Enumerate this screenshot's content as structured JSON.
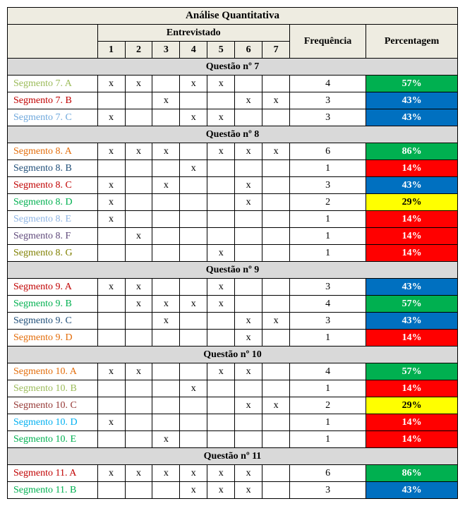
{
  "title": "Análise Quantitativa",
  "subheader": "Entrevistado",
  "freq_header": "Frequência",
  "pct_header": "Percentagem",
  "cols": [
    "1",
    "2",
    "3",
    "4",
    "5",
    "6",
    "7"
  ],
  "pct_band_colors": {
    "green": "#00b050",
    "blue": "#0070c0",
    "yellow": "#ffff00",
    "red": "#ff0000"
  },
  "yellow_text_color": "#000000",
  "questions": [
    {
      "title": "Questão nº 7",
      "rows": [
        {
          "label": "Segmento 7. A",
          "label_color": "#9bbb59",
          "marks": [
            "x",
            "x",
            "",
            "x",
            "x",
            "",
            ""
          ],
          "freq": 4,
          "pct": "57%",
          "band": "green"
        },
        {
          "label": "Segmento 7. B",
          "label_color": "#c00000",
          "marks": [
            "",
            "",
            "x",
            "",
            "",
            "x",
            "x"
          ],
          "freq": 3,
          "pct": "43%",
          "band": "blue"
        },
        {
          "label": "Segmento 7. C",
          "label_color": "#6fa8dc",
          "marks": [
            "x",
            "",
            "",
            "x",
            "x",
            "",
            ""
          ],
          "freq": 3,
          "pct": "43%",
          "band": "blue"
        }
      ]
    },
    {
      "title": "Questão nº 8",
      "rows": [
        {
          "label": "Segmento 8. A",
          "label_color": "#e36c09",
          "marks": [
            "x",
            "x",
            "x",
            "",
            "x",
            "x",
            "x"
          ],
          "freq": 6,
          "pct": "86%",
          "band": "green"
        },
        {
          "label": "Segmento 8. B",
          "label_color": "#1f4e78",
          "marks": [
            "",
            "",
            "",
            "x",
            "",
            "",
            ""
          ],
          "freq": 1,
          "pct": "14%",
          "band": "red"
        },
        {
          "label": "Segmento 8. C",
          "label_color": "#c00000",
          "marks": [
            "x",
            "",
            "x",
            "",
            "",
            "x",
            ""
          ],
          "freq": 3,
          "pct": "43%",
          "band": "blue"
        },
        {
          "label": "Segmento 8. D",
          "label_color": "#00b050",
          "marks": [
            "x",
            "",
            "",
            "",
            "",
            "x",
            ""
          ],
          "freq": 2,
          "pct": "29%",
          "band": "yellow"
        },
        {
          "label": "Segmento 8. E",
          "label_color": "#8eb4e3",
          "marks": [
            "x",
            "",
            "",
            "",
            "",
            "",
            ""
          ],
          "freq": 1,
          "pct": "14%",
          "band": "red"
        },
        {
          "label": "Segmento 8. F",
          "label_color": "#604a7b",
          "marks": [
            "",
            "x",
            "",
            "",
            "",
            "",
            ""
          ],
          "freq": 1,
          "pct": "14%",
          "band": "red"
        },
        {
          "label": "Segmento 8. G",
          "label_color": "#808000",
          "marks": [
            "",
            "",
            "",
            "",
            "x",
            "",
            ""
          ],
          "freq": 1,
          "pct": "14%",
          "band": "red"
        }
      ]
    },
    {
      "title": "Questão nº 9",
      "rows": [
        {
          "label": "Segmento 9. A",
          "label_color": "#c00000",
          "marks": [
            "x",
            "x",
            "",
            "",
            "x",
            "",
            ""
          ],
          "freq": 3,
          "pct": "43%",
          "band": "blue"
        },
        {
          "label": "Segmento 9. B",
          "label_color": "#00b050",
          "marks": [
            "",
            "x",
            "x",
            "x",
            "x",
            "",
            ""
          ],
          "freq": 4,
          "pct": "57%",
          "band": "green"
        },
        {
          "label": "Segmento 9. C",
          "label_color": "#1f4e78",
          "marks": [
            "",
            "",
            "x",
            "",
            "",
            "x",
            "x"
          ],
          "freq": 3,
          "pct": "43%",
          "band": "blue"
        },
        {
          "label": "Segmento 9. D",
          "label_color": "#e36c09",
          "marks": [
            "",
            "",
            "",
            "",
            "",
            "x",
            ""
          ],
          "freq": 1,
          "pct": "14%",
          "band": "red"
        }
      ]
    },
    {
      "title": "Questão nº 10",
      "rows": [
        {
          "label": "Segmento 10. A",
          "label_color": "#e36c09",
          "marks": [
            "x",
            "x",
            "",
            "",
            "x",
            "x",
            ""
          ],
          "freq": 4,
          "pct": "57%",
          "band": "green"
        },
        {
          "label": "Segmento 10. B",
          "label_color": "#9bbb59",
          "marks": [
            "",
            "",
            "",
            "x",
            "",
            "",
            ""
          ],
          "freq": 1,
          "pct": "14%",
          "band": "red"
        },
        {
          "label": "Segmento 10. C",
          "label_color": "#953734",
          "marks": [
            "",
            "",
            "",
            "",
            "",
            "x",
            "x"
          ],
          "freq": 2,
          "pct": "29%",
          "band": "yellow"
        },
        {
          "label": "Segmento 10. D",
          "label_color": "#00b0f0",
          "marks": [
            "x",
            "",
            "",
            "",
            "",
            "",
            ""
          ],
          "freq": 1,
          "pct": "14%",
          "band": "red"
        },
        {
          "label": "Segmento 10. E",
          "label_color": "#00b050",
          "marks": [
            "",
            "",
            "x",
            "",
            "",
            "",
            ""
          ],
          "freq": 1,
          "pct": "14%",
          "band": "red"
        }
      ]
    },
    {
      "title": "Questão nº 11",
      "rows": [
        {
          "label": "Segmento 11. A",
          "label_color": "#c00000",
          "marks": [
            "x",
            "x",
            "x",
            "x",
            "x",
            "x",
            ""
          ],
          "freq": 6,
          "pct": "86%",
          "band": "green"
        },
        {
          "label": "Segmento 11. B",
          "label_color": "#00b050",
          "marks": [
            "",
            "",
            "",
            "x",
            "x",
            "x",
            ""
          ],
          "freq": 3,
          "pct": "43%",
          "band": "blue"
        }
      ]
    }
  ]
}
